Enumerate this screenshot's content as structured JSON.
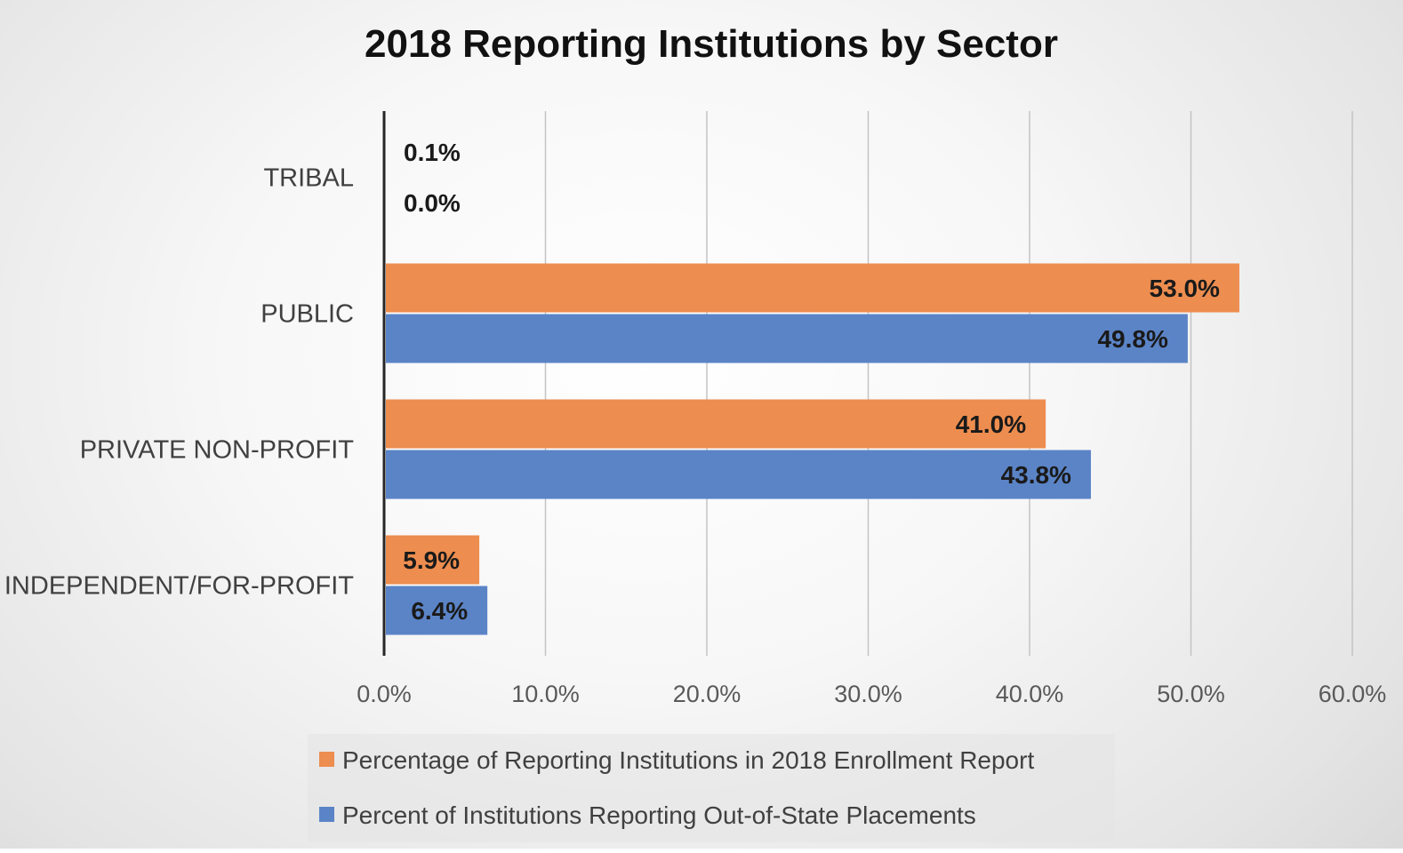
{
  "chart_data": {
    "type": "bar",
    "orientation": "horizontal",
    "title": "2018 Reporting Institutions by Sector",
    "categories": [
      "TRIBAL",
      "PUBLIC",
      "PRIVATE NON-PROFIT",
      "INDEPENDENT/FOR-PROFIT"
    ],
    "series": [
      {
        "name": "Percentage of Reporting Institutions in 2018 Enrollment Report",
        "color": "#ED8D4F",
        "values": [
          0.1,
          53.0,
          41.0,
          5.9
        ],
        "labels": [
          "0.1%",
          "53.0%",
          "41.0%",
          "5.9%"
        ]
      },
      {
        "name": "Percent of Institutions Reporting Out-of-State Placements",
        "color": "#5B84C7",
        "values": [
          0.0,
          49.8,
          43.8,
          6.4
        ],
        "labels": [
          "0.0%",
          "49.8%",
          "43.8%",
          "6.4%"
        ]
      }
    ],
    "xlim": [
      0,
      60
    ],
    "ticks": [
      0,
      10,
      20,
      30,
      40,
      50,
      60
    ],
    "tick_labels": [
      "0.0%",
      "10.0%",
      "20.0%",
      "30.0%",
      "40.0%",
      "50.0%",
      "60.0%"
    ],
    "xlabel": "",
    "ylabel": "",
    "grid": true,
    "legend_position": "bottom"
  }
}
